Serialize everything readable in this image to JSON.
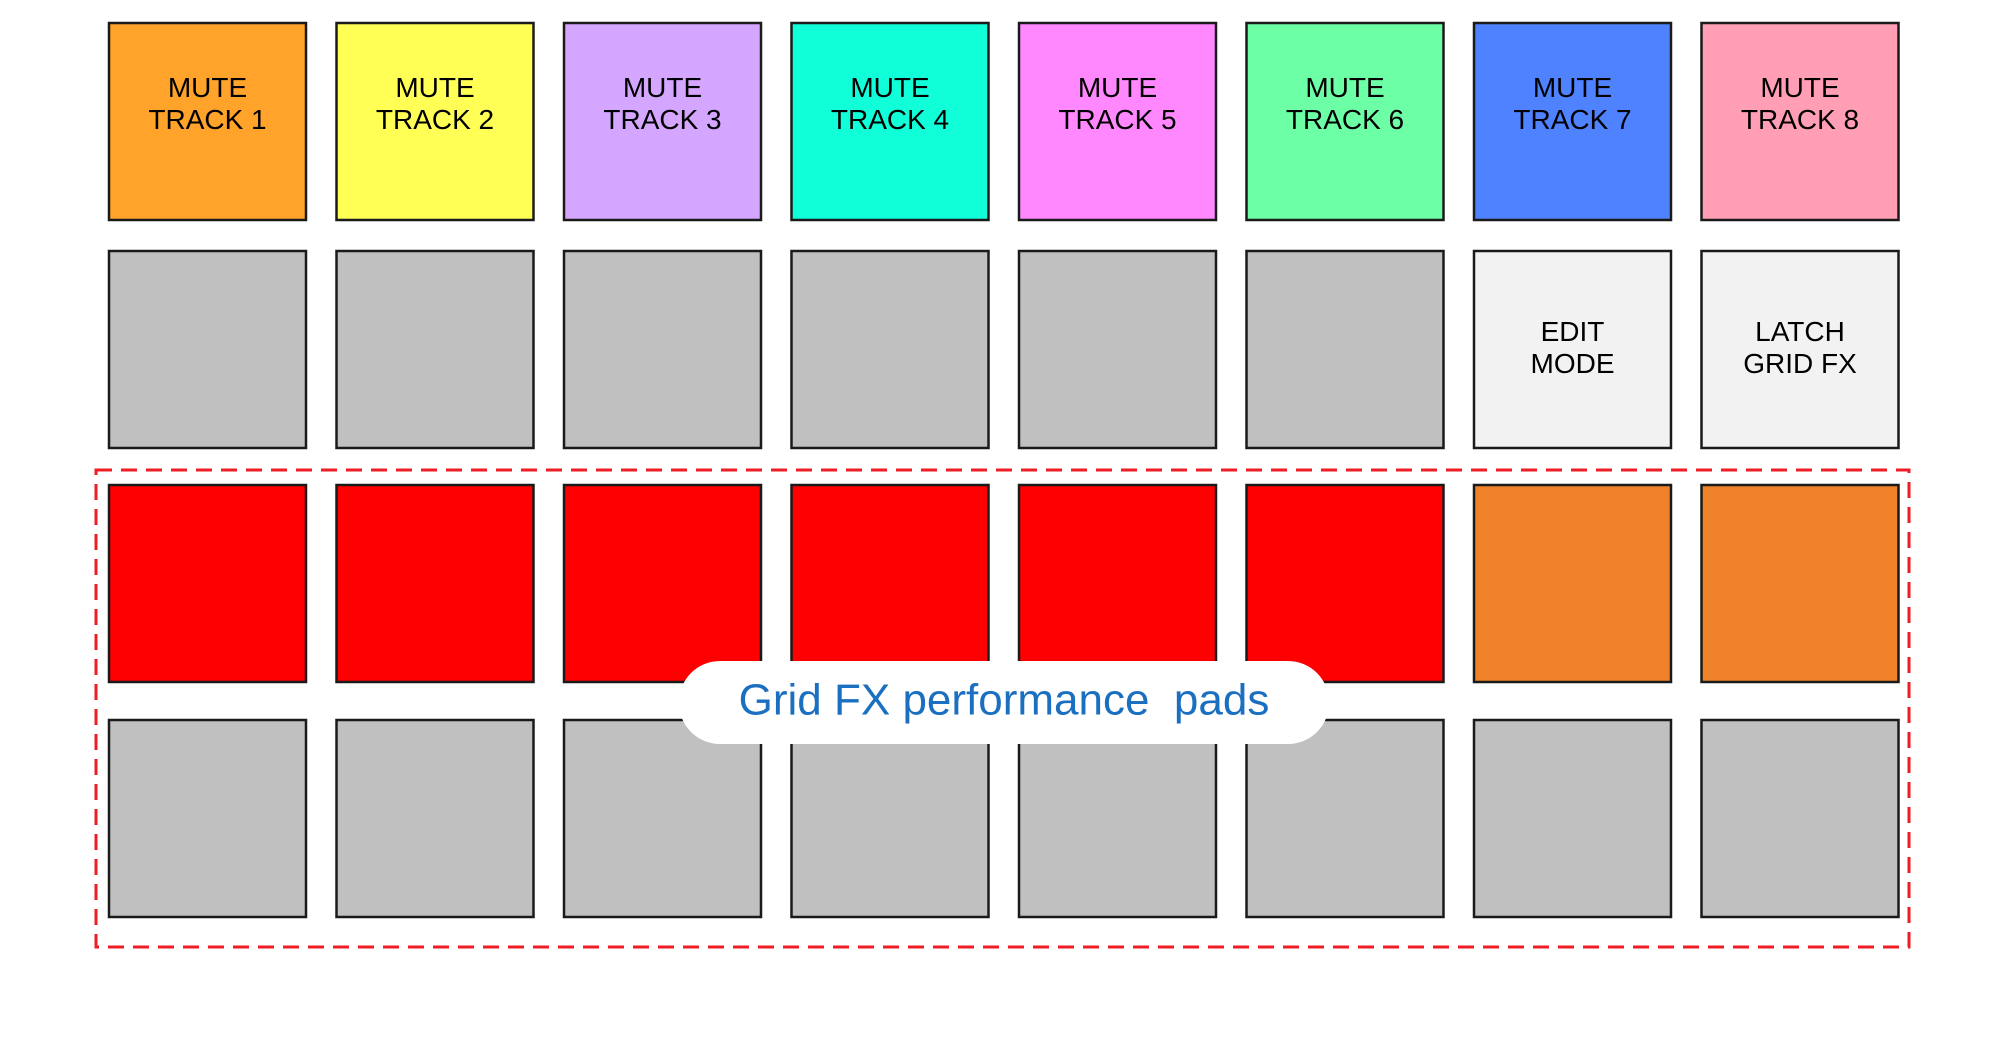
{
  "rows": [
    {
      "pads": [
        {
          "color": "#ffa32a",
          "label": [
            "MUTE",
            "TRACK 1"
          ]
        },
        {
          "color": "#ffff55",
          "label": [
            "MUTE",
            "TRACK 2"
          ]
        },
        {
          "color": "#d5a6ff",
          "label": [
            "MUTE",
            "TRACK 3"
          ]
        },
        {
          "color": "#11ffd8",
          "label": [
            "MUTE",
            "TRACK 4"
          ]
        },
        {
          "color": "#ff88ff",
          "label": [
            "MUTE",
            "TRACK 5"
          ]
        },
        {
          "color": "#6dffa6",
          "label": [
            "MUTE",
            "TRACK 6"
          ]
        },
        {
          "color": "#4f82ff",
          "label": [
            "MUTE",
            "TRACK 7"
          ]
        },
        {
          "color": "#ff9eb5",
          "label": [
            "MUTE",
            "TRACK 8"
          ]
        }
      ]
    },
    {
      "pads": [
        {
          "color": "#c0c0c0"
        },
        {
          "color": "#c0c0c0"
        },
        {
          "color": "#c0c0c0"
        },
        {
          "color": "#c0c0c0"
        },
        {
          "color": "#c0c0c0"
        },
        {
          "color": "#c0c0c0"
        },
        {
          "color": "#f2f2f2",
          "label": [
            "EDIT",
            "MODE"
          ]
        },
        {
          "color": "#f2f2f2",
          "label": [
            "LATCH",
            "GRID FX"
          ]
        }
      ]
    },
    {
      "pads": [
        {
          "color": "#ff0000"
        },
        {
          "color": "#ff0000"
        },
        {
          "color": "#ff0000"
        },
        {
          "color": "#ff0000"
        },
        {
          "color": "#ff0000"
        },
        {
          "color": "#ff0000"
        },
        {
          "color": "#f0822a"
        },
        {
          "color": "#f0822a"
        }
      ]
    },
    {
      "pads": [
        {
          "color": "#c0c0c0"
        },
        {
          "color": "#c0c0c0"
        },
        {
          "color": "#c0c0c0"
        },
        {
          "color": "#c0c0c0"
        },
        {
          "color": "#c0c0c0"
        },
        {
          "color": "#c0c0c0"
        },
        {
          "color": "#c0c0c0"
        },
        {
          "color": "#c0c0c0"
        }
      ]
    }
  ],
  "performance_area": {
    "label": "Grid FX performance  pads"
  }
}
